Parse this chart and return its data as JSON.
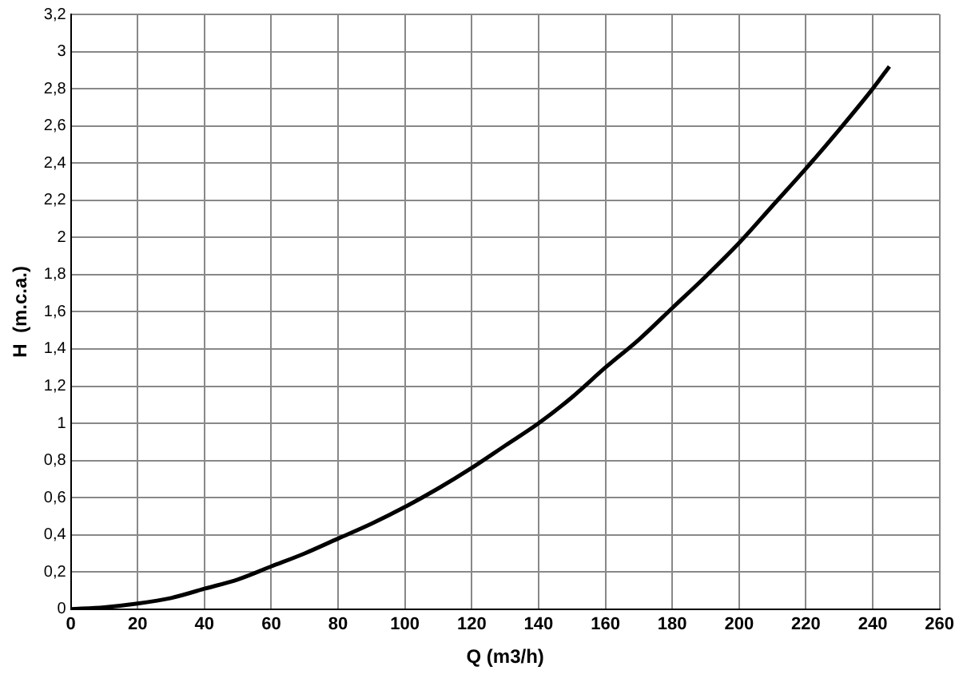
{
  "chart_data": {
    "type": "line",
    "xlabel": "Q (m3/h)",
    "ylabel": "H  (m.c.a.)",
    "x": [
      0,
      10,
      20,
      30,
      40,
      50,
      60,
      70,
      80,
      90,
      100,
      110,
      120,
      130,
      140,
      150,
      160,
      170,
      180,
      190,
      200,
      210,
      220,
      230,
      240,
      245
    ],
    "series": [
      {
        "color": "#000000",
        "values": [
          0,
          0.01,
          0.03,
          0.06,
          0.11,
          0.16,
          0.23,
          0.3,
          0.38,
          0.46,
          0.55,
          0.65,
          0.76,
          0.88,
          1.0,
          1.14,
          1.3,
          1.45,
          1.62,
          1.79,
          1.97,
          2.17,
          2.37,
          2.58,
          2.8,
          2.92
        ]
      }
    ],
    "xlim": [
      0,
      260
    ],
    "xticks": [
      0,
      20,
      40,
      60,
      80,
      100,
      120,
      140,
      160,
      180,
      200,
      220,
      240,
      260
    ],
    "ylim": [
      0,
      3.2
    ],
    "yticks": [
      {
        "value": 0,
        "label": "0"
      },
      {
        "value": 0.2,
        "label": "0,2"
      },
      {
        "value": 0.4,
        "label": "0,4"
      },
      {
        "value": 0.6,
        "label": "0,6"
      },
      {
        "value": 0.8,
        "label": "0,8"
      },
      {
        "value": 1,
        "label": "1"
      },
      {
        "value": 1.2,
        "label": "1,2"
      },
      {
        "value": 1.4,
        "label": "1,4"
      },
      {
        "value": 1.6,
        "label": "1,6"
      },
      {
        "value": 1.8,
        "label": "1,8"
      },
      {
        "value": 2,
        "label": "2"
      },
      {
        "value": 2.2,
        "label": "2,2"
      },
      {
        "value": 2.4,
        "label": "2,4"
      },
      {
        "value": 2.6,
        "label": "2,6"
      },
      {
        "value": 2.8,
        "label": "2,8"
      },
      {
        "value": 3,
        "label": "3"
      },
      {
        "value": 3.2,
        "label": "3,2"
      }
    ],
    "grid": true,
    "legend": false,
    "marker": "none",
    "line_style": "solid"
  }
}
